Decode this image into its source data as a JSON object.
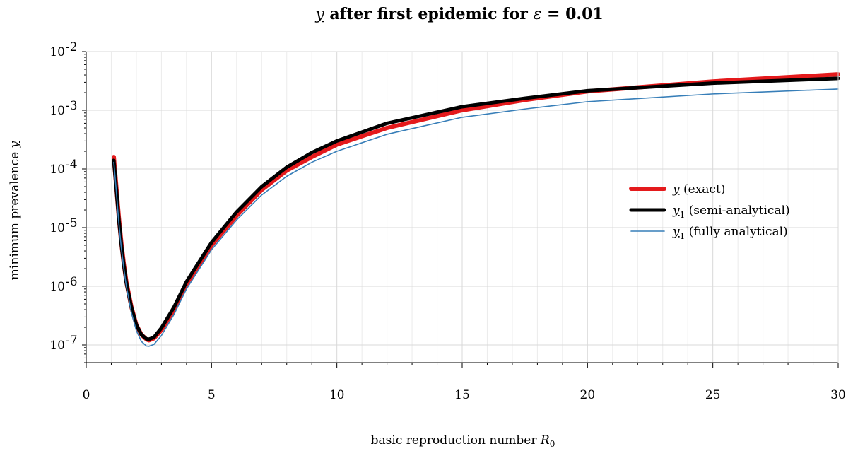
{
  "chart_data": {
    "type": "line",
    "title": "y after first epidemic for ε = 0.01",
    "xlabel": "basic reproduction number R₀",
    "ylabel": "minimum prevalence y",
    "xlim": [
      0,
      30
    ],
    "ylim": [
      5e-08,
      0.01
    ],
    "yscale": "log",
    "grid": true,
    "legend_position": "right",
    "x_ticks": [
      "0",
      "5",
      "10",
      "15",
      "20",
      "25",
      "30"
    ],
    "y_ticks": [
      {
        "base": "10",
        "exp": "-2"
      },
      {
        "base": "10",
        "exp": "-3"
      },
      {
        "base": "10",
        "exp": "-4"
      },
      {
        "base": "10",
        "exp": "-5"
      },
      {
        "base": "10",
        "exp": "-6"
      },
      {
        "base": "10",
        "exp": "-7"
      }
    ],
    "x": [
      1.1,
      1.2,
      1.3,
      1.4,
      1.5,
      1.6,
      1.8,
      2.0,
      2.2,
      2.4,
      2.5,
      2.7,
      3.0,
      3.5,
      4.0,
      5.0,
      6.0,
      7.0,
      8.0,
      9.0,
      10.0,
      12.0,
      15.0,
      17.5,
      20.0,
      25.0,
      30.0
    ],
    "series": [
      {
        "name": "y (exact)",
        "legend_label": "y",
        "legend_suffix": "(exact)",
        "color": "#e41a1c",
        "values": [
          0.00016,
          5e-05,
          1.5e-05,
          5.5e-06,
          2.4e-06,
          1.2e-06,
          4.5e-07,
          2.2e-07,
          1.5e-07,
          1.25e-07,
          1.2e-07,
          1.3e-07,
          1.8e-07,
          4e-07,
          1.1e-06,
          5e-06,
          1.6e-05,
          4.4e-05,
          9.4e-05,
          0.00016,
          0.00026,
          0.0005,
          0.001,
          0.0015,
          0.0021,
          0.0031,
          0.0041
        ]
      },
      {
        "name": "y1 (semi-analytical)",
        "legend_label": "y",
        "legend_sub": "1",
        "legend_suffix": "(semi-analytical)",
        "color": "#000000",
        "values": [
          0.00014,
          4.6e-05,
          1.4e-05,
          5.2e-06,
          2.3e-06,
          1.15e-06,
          4.4e-07,
          2.2e-07,
          1.5e-07,
          1.27e-07,
          1.25e-07,
          1.35e-07,
          1.95e-07,
          4.4e-07,
          1.2e-06,
          5.6e-06,
          1.85e-05,
          5e-05,
          0.000107,
          0.00019,
          0.0003,
          0.0006,
          0.00115,
          0.0016,
          0.00215,
          0.0029,
          0.0035
        ]
      },
      {
        "name": "y1 (fully analytical)",
        "legend_label": "y",
        "legend_sub": "1",
        "legend_suffix": "(fully analytical)",
        "color": "#377eb8",
        "values": [
          0.00013,
          4.2e-05,
          1.2e-05,
          4.5e-06,
          2e-06,
          1e-06,
          3.6e-07,
          1.75e-07,
          1.15e-07,
          9.6e-08,
          9.5e-08,
          1.02e-07,
          1.45e-07,
          3.3e-07,
          9e-07,
          4.2e-06,
          1.35e-05,
          3.6e-05,
          7.5e-05,
          0.00013,
          0.0002,
          0.00039,
          0.00076,
          0.00105,
          0.0014,
          0.0019,
          0.0023
        ]
      }
    ]
  }
}
